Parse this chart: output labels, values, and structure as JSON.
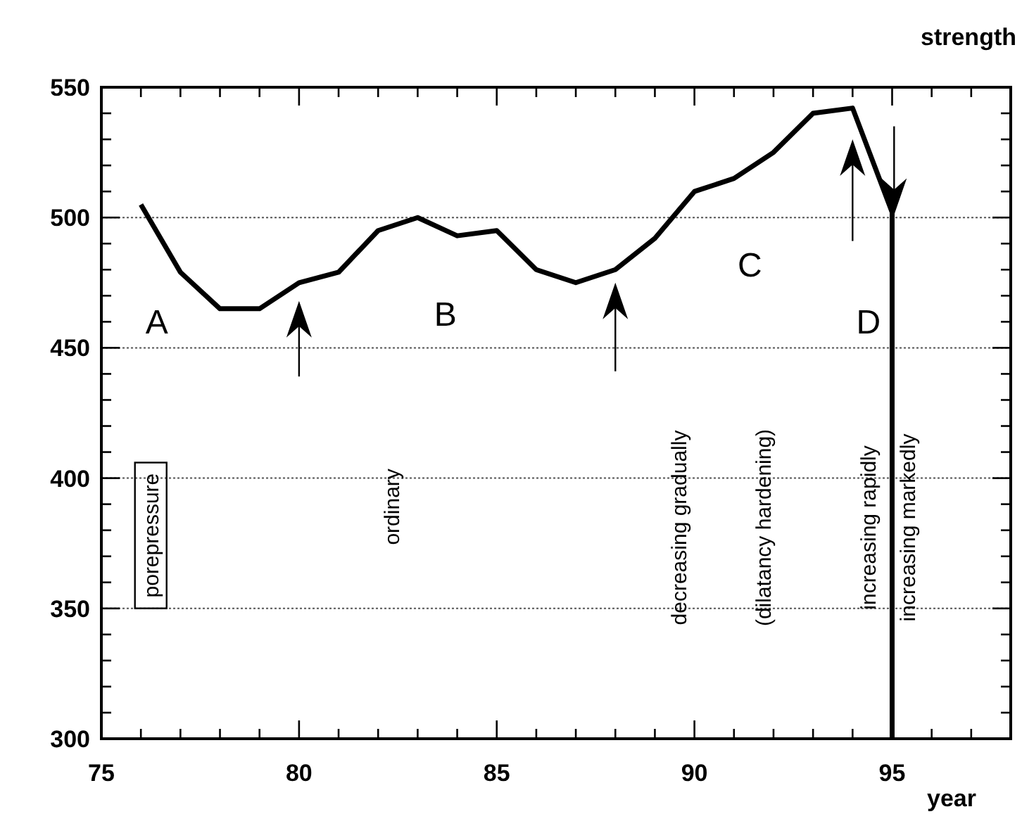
{
  "chart_data": {
    "type": "line",
    "ylabel": "strength",
    "xlabel": "year",
    "x": [
      76,
      77,
      78,
      79,
      80,
      81,
      82,
      83,
      84,
      85,
      86,
      87,
      88,
      89,
      90,
      91,
      92,
      93,
      94,
      95,
      95
    ],
    "series": [
      {
        "color": "#000000",
        "values": [
          505,
          479,
          465,
          465,
          475,
          479,
          495,
          500,
          493,
          495,
          480,
          475,
          480,
          492,
          510,
          515,
          525,
          540,
          542,
          502,
          300
        ]
      }
    ],
    "xlim": [
      75,
      98
    ],
    "xticks": [
      75,
      {
        "value": 76,
        "label": null
      },
      {
        "value": 77,
        "label": null
      },
      {
        "value": 78,
        "label": null
      },
      {
        "value": 79,
        "label": null
      },
      80,
      {
        "value": 81,
        "label": null
      },
      {
        "value": 82,
        "label": null
      },
      {
        "value": 83,
        "label": null
      },
      {
        "value": 84,
        "label": null
      },
      85,
      {
        "value": 86,
        "label": null
      },
      {
        "value": 87,
        "label": null
      },
      {
        "value": 88,
        "label": null
      },
      {
        "value": 89,
        "label": null
      },
      90,
      {
        "value": 91,
        "label": null
      },
      {
        "value": 92,
        "label": null
      },
      {
        "value": 93,
        "label": null
      },
      {
        "value": 94,
        "label": null
      },
      95,
      {
        "value": 96,
        "label": null
      },
      {
        "value": 97,
        "label": null
      }
    ],
    "ylim": [
      300,
      550
    ],
    "yticks": [
      300,
      {
        "value": 310,
        "label": null
      },
      {
        "value": 320,
        "label": null
      },
      {
        "value": 330,
        "label": null
      },
      {
        "value": 340,
        "label": null
      },
      350,
      {
        "value": 360,
        "label": null
      },
      {
        "value": 370,
        "label": null
      },
      {
        "value": 380,
        "label": null
      },
      {
        "value": 390,
        "label": null
      },
      400,
      {
        "value": 410,
        "label": null
      },
      {
        "value": 420,
        "label": null
      },
      {
        "value": 430,
        "label": null
      },
      {
        "value": 440,
        "label": null
      },
      450,
      {
        "value": 460,
        "label": null
      },
      {
        "value": 470,
        "label": null
      },
      {
        "value": 480,
        "label": null
      },
      {
        "value": 490,
        "label": null
      },
      500,
      {
        "value": 510,
        "label": null
      },
      {
        "value": 520,
        "label": null
      },
      {
        "value": 530,
        "label": null
      },
      {
        "value": 540,
        "label": null
      },
      550
    ],
    "grid": "y",
    "marker": "none",
    "line_style": "solid",
    "annotations": [
      "A",
      "B",
      "C",
      "D",
      "porepressure",
      "ordinary",
      "decreasing gradually",
      "(dilatancy hardening)",
      "increasing rapidly",
      "increasing markedly"
    ]
  }
}
